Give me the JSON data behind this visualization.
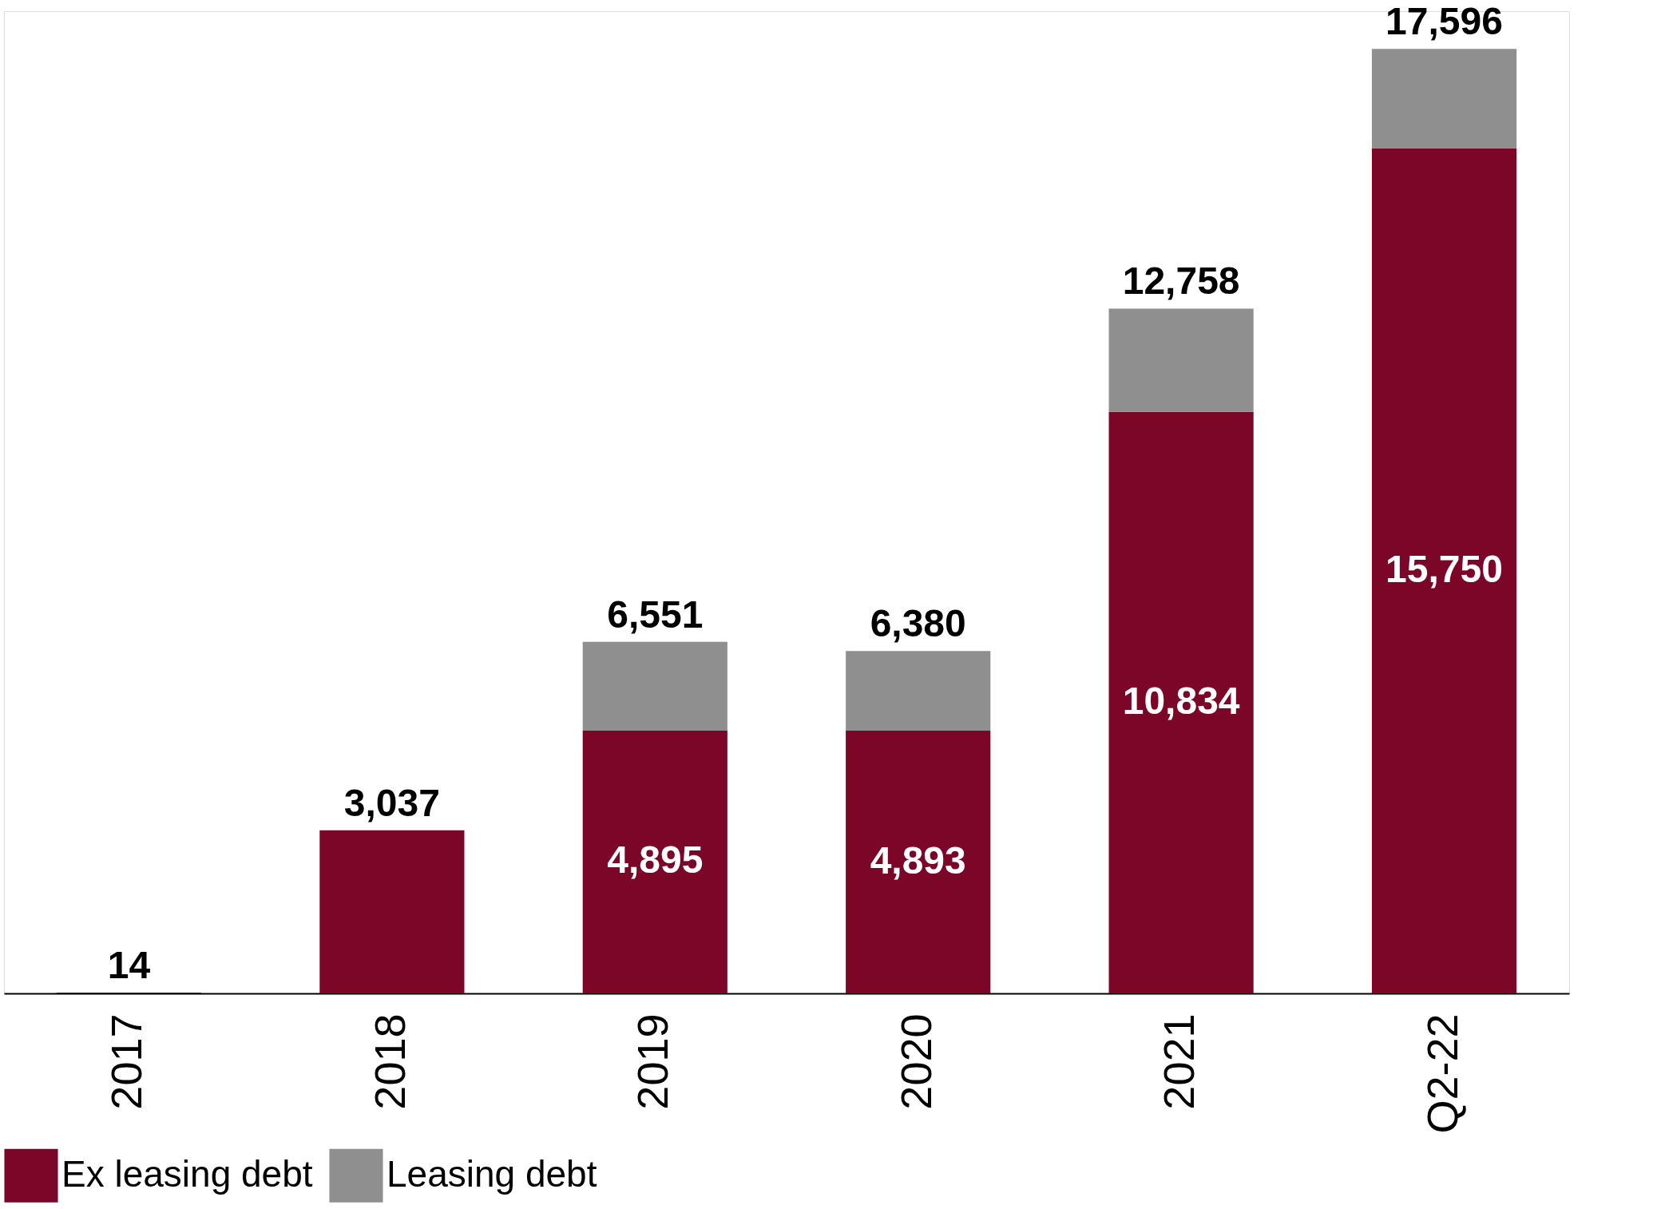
{
  "chart_data": {
    "type": "bar",
    "stacked": true,
    "categories": [
      "2017",
      "2018",
      "2019",
      "2020",
      "2021",
      "Q2-22"
    ],
    "series": [
      {
        "name": "Ex leasing debt",
        "color": "#7b0628",
        "values": [
          14,
          3037,
          4895,
          4893,
          10834,
          15750
        ],
        "value_labels": [
          null,
          null,
          "4,895",
          "4,893",
          "10,834",
          "15,750"
        ]
      },
      {
        "name": "Leasing debt",
        "color": "#8f8f8f",
        "values": [
          0,
          0,
          1656,
          1487,
          1924,
          1846
        ]
      }
    ],
    "totals": [
      "14",
      "3,037",
      "6,551",
      "6,380",
      "12,758",
      "17,596"
    ],
    "legend": "bottom",
    "grid": false
  }
}
